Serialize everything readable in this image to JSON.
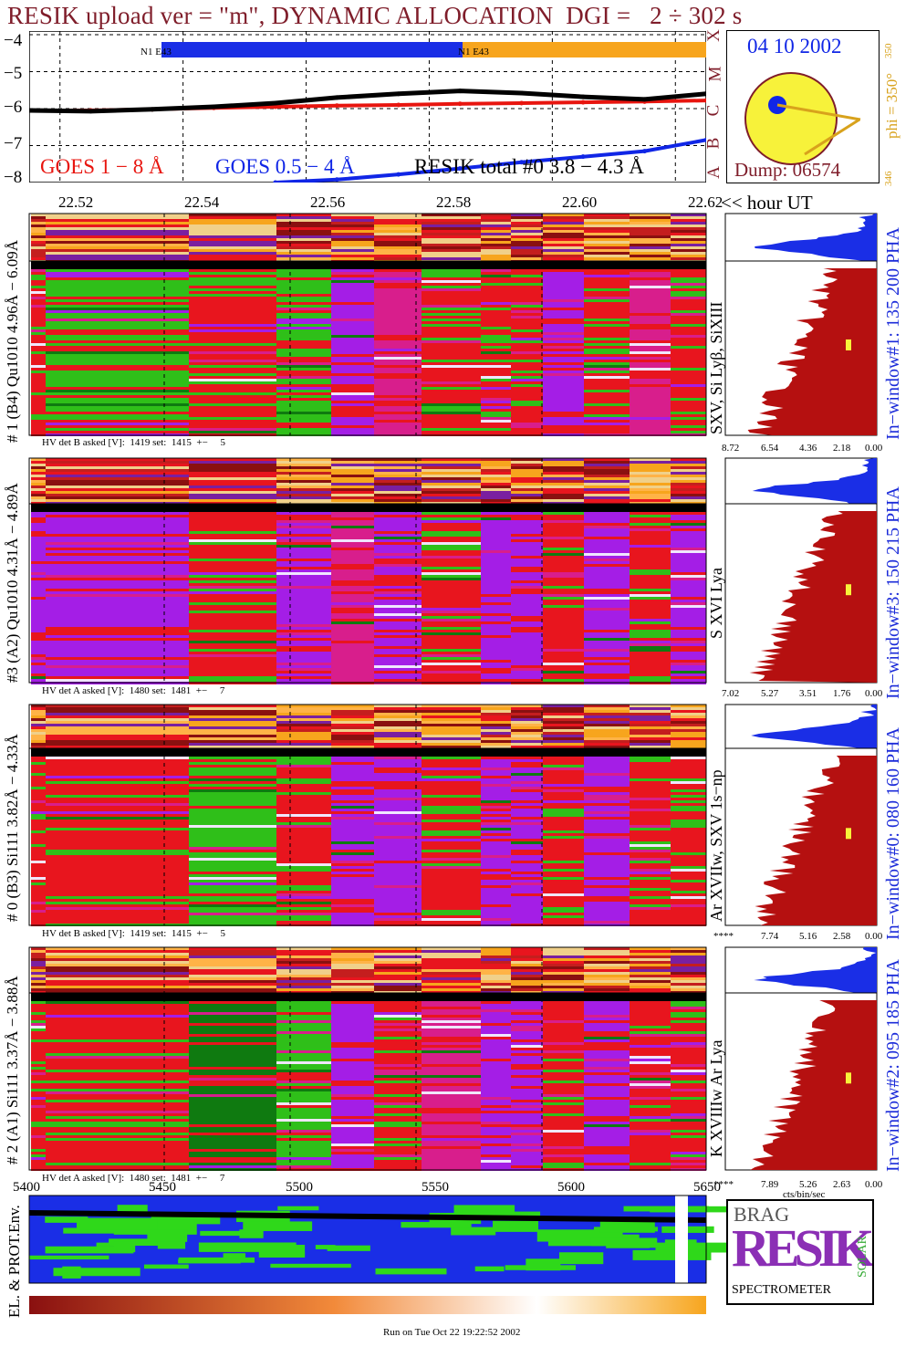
{
  "title": "RESIK upload ver = \"m\", DYNAMIC ALLOCATION  DGI =   2 ÷ 302 s",
  "lightcurve": {
    "y_ticks": [
      "−4",
      "−5",
      "−6",
      "−7",
      "−8"
    ],
    "class_letters": [
      "X",
      "M",
      "C",
      "B",
      "A"
    ],
    "goes_long_label": "GOES 1 − 8 Å",
    "goes_short_label": "GOES 0.5 − 4 Å",
    "resik_label": "RESIK total #0  3.8 − 4.3 Å",
    "bar_label_1": "N1 E43",
    "bar_label_2": "N1 E43",
    "colors": {
      "goes_long": "#e8150f",
      "goes_short": "#1026e6",
      "resik": "#000000",
      "bar_blue": "#1a2ee6",
      "bar_orange": "#f7a51d"
    }
  },
  "sun": {
    "date": "04 10 2002",
    "phi": "phi = 350°",
    "phi_top": "350",
    "phi_bottom": "346",
    "dump": "Dump: 06574"
  },
  "time_axis": {
    "ticks": [
      "22.52",
      "22.54",
      "22.56",
      "22.58",
      "22.60",
      "22.62"
    ],
    "unit": "<< hour UT"
  },
  "panels": [
    {
      "label": "# 1 (B4) Qu1010 4.96Å − 6.09Å",
      "hv": "HV det B asked [V]:  1419 set:  1415  +−     5",
      "line": "SXV, Si Lyβ, SiXIII",
      "window": "In−window#1:  135 200 PHA",
      "x_ticks": [
        "8.72",
        "6.54",
        "4.36",
        "2.18",
        "0.00"
      ]
    },
    {
      "label": "#3 (A2) Qu1010  4.31Å − 4.89Å",
      "hv": "HV det A asked [V]:  1480 set:  1481  +−     7",
      "line": "S XVI Lya",
      "window": "In−window#3:  150 215 PHA",
      "x_ticks": [
        "7.02",
        "5.27",
        "3.51",
        "1.76",
        "0.00"
      ]
    },
    {
      "label": "# 0 (B3) Si111  3.82Å − 4.33Å",
      "hv": "HV det B asked [V]:  1419 set:  1415  +−     5",
      "line": "Ar XVIIw,  SXV 1s−np",
      "window": "In−window#0:  080 160 PHA",
      "x_ticks": [
        "****",
        "7.74",
        "5.16",
        "2.58",
        "0.00"
      ]
    },
    {
      "label": "# 2 (A1) Si111  3.37Å − 3.88Å",
      "hv": "HV det A asked [V]:  1480 set:  1481  +−     7",
      "line": "K XVIIIw  Ar Lya",
      "window": "In−window#2:  095 185 PHA",
      "x_ticks": [
        "****",
        "7.89",
        "5.26",
        "2.63",
        "0.00"
      ],
      "x_unit": "cts/bin/sec"
    }
  ],
  "bottom_axis": {
    "ticks": [
      "5400",
      "5450",
      "5500",
      "5550",
      "5600",
      "5650"
    ]
  },
  "env_label": "EL. & PROT.Env.",
  "logo": {
    "letters": "RESIK",
    "top_words": "BRAG",
    "side_word": "SOLAR",
    "caption": "SPECTROMETER"
  },
  "footer": "Run on Tue Oct 22 19:22:52 2002",
  "chart_data": {
    "type": "line",
    "title": "RESIK upload ver = \"m\", DYNAMIC ALLOCATION  DGI =   2 ÷ 302 s",
    "xlabel": "hour UT",
    "x": [
      22.51,
      22.52,
      22.53,
      22.54,
      22.55,
      22.56,
      22.57,
      22.58,
      22.59,
      22.6,
      22.61,
      22.62
    ],
    "ylim": [
      -8,
      -3.9
    ],
    "series": [
      {
        "name": "GOES 1 − 8 Å",
        "values": [
          -6.05,
          -6.05,
          -6.02,
          -5.98,
          -5.95,
          -5.92,
          -5.9,
          -5.87,
          -5.85,
          -5.83,
          -5.81,
          -5.78
        ]
      },
      {
        "name": "GOES 0.5 − 4 Å",
        "values": [
          null,
          null,
          null,
          null,
          -8.0,
          -7.92,
          -7.78,
          -7.62,
          -7.45,
          -7.3,
          -7.15,
          -6.85
        ]
      },
      {
        "name": "RESIK total #0  3.8 − 4.3 Å",
        "values": [
          -6.05,
          -6.07,
          -6.02,
          -5.95,
          -5.85,
          -5.7,
          -5.6,
          -5.52,
          -5.58,
          -5.68,
          -5.75,
          -5.6
        ]
      }
    ]
  }
}
